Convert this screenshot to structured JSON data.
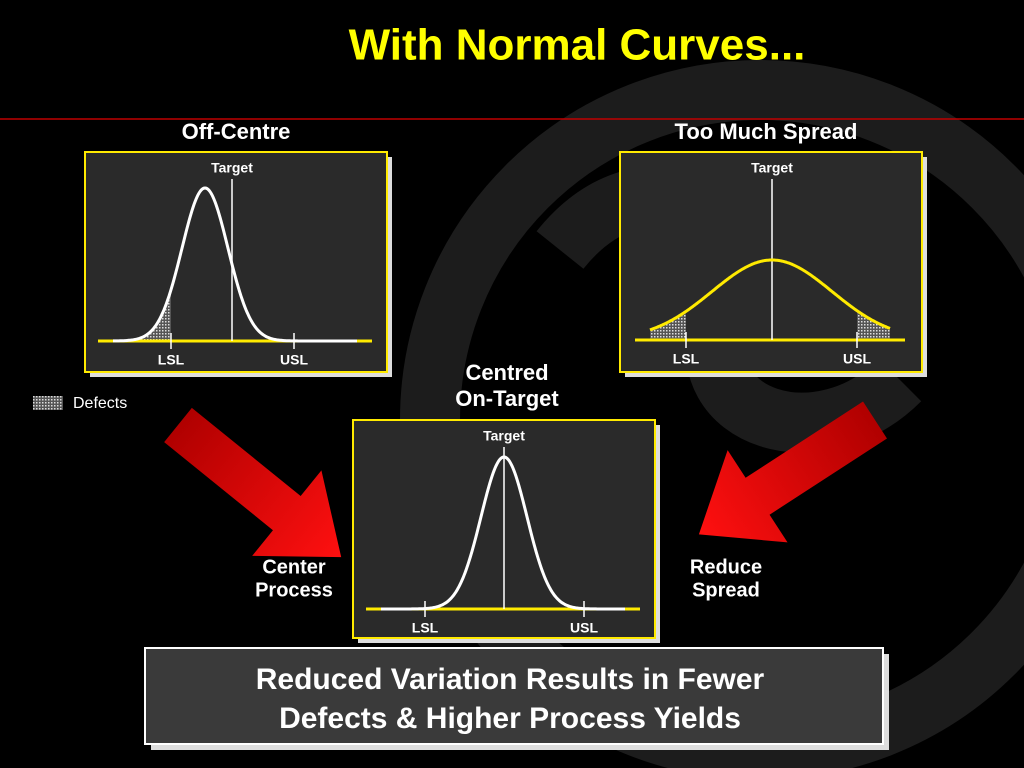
{
  "title": "With Normal Curves...",
  "panels": [
    {
      "label": [
        "Off-Centre"
      ],
      "target": "Target",
      "lsl": "LSL",
      "usl": "USL"
    },
    {
      "label": [
        "Too Much Spread"
      ],
      "target": "Target",
      "lsl": "LSL",
      "usl": "USL"
    },
    {
      "label": [
        "Centred",
        "On-Target"
      ],
      "target": "Target",
      "lsl": "LSL",
      "usl": "USL"
    }
  ],
  "legend": {
    "label": "Defects"
  },
  "actions": [
    {
      "lines": [
        "Center",
        "Process"
      ]
    },
    {
      "lines": [
        "Reduce",
        "Spread"
      ]
    }
  ],
  "conclusion": {
    "lines": [
      "Reduced Variation Results in Fewer",
      "Defects &  Higher Process Yields"
    ]
  }
}
